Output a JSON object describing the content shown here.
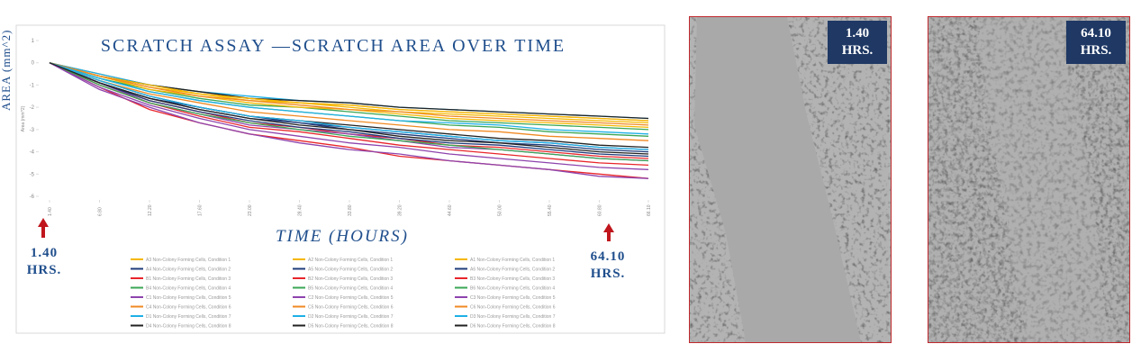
{
  "side_label": "AREA (mm^2)",
  "chart_data": {
    "type": "line",
    "title": "SCRATCH ASSAY —SCRATCH AREA OVER TIME",
    "x_label": "TIME (HOURS)",
    "y_label": "Area (mm^2)",
    "x": [
      1.4,
      6.8,
      12.2,
      17.6,
      23.0,
      28.4,
      33.8,
      39.2,
      44.6,
      50.0,
      55.4,
      60.8,
      66.1
    ],
    "xlim": [
      1.4,
      66.1
    ],
    "xticks": [
      {
        "value": 1.4,
        "label": "1.40"
      },
      {
        "value": 6.8,
        "label": "6.80"
      },
      {
        "value": 12.2,
        "label": "12.20"
      },
      {
        "value": 17.6,
        "label": "17.60"
      },
      {
        "value": 23.0,
        "label": "23.00"
      },
      {
        "value": 28.4,
        "label": "28.40"
      },
      {
        "value": 33.8,
        "label": "33.80"
      },
      {
        "value": 39.2,
        "label": "39.20"
      },
      {
        "value": 44.6,
        "label": "44.60"
      },
      {
        "value": 50.0,
        "label": "50.00"
      },
      {
        "value": 55.4,
        "label": "55.40"
      },
      {
        "value": 60.8,
        "label": "60.80"
      },
      {
        "value": 66.1,
        "label": "66.10"
      }
    ],
    "ylim": [
      -6,
      1
    ],
    "yticks": [
      1,
      0,
      -1,
      -2,
      -3,
      -4,
      -5,
      -6
    ],
    "grid": false,
    "annotations": [
      "1.40 HRS.",
      "64.10 HRS."
    ],
    "series": [
      {
        "name": "A3 Non-Colony Forming Cells, Condition 1",
        "color": "#f5b800",
        "values": [
          0,
          -0.6,
          -1.1,
          -1.4,
          -1.7,
          -1.8,
          -2.0,
          -2.2,
          -2.3,
          -2.4,
          -2.5,
          -2.6,
          -2.7
        ]
      },
      {
        "name": "A4 Non-Colony Forming Cells, Condition 2",
        "color": "#1f3b7a",
        "values": [
          0,
          -0.9,
          -1.6,
          -2.0,
          -2.4,
          -2.7,
          -2.9,
          -3.1,
          -3.3,
          -3.5,
          -3.6,
          -3.8,
          -3.9
        ]
      },
      {
        "name": "B1 Non-Colony Forming Cells, Condition 3",
        "color": "#e8262b",
        "values": [
          0,
          -1.1,
          -2.1,
          -2.7,
          -3.2,
          -3.5,
          -3.8,
          -4.2,
          -4.4,
          -4.6,
          -4.8,
          -5.0,
          -5.2
        ]
      },
      {
        "name": "B4 Non-Colony Forming Cells, Condition 4",
        "color": "#3aa655",
        "values": [
          0,
          -0.7,
          -1.2,
          -1.6,
          -1.9,
          -2.0,
          -2.2,
          -2.4,
          -2.6,
          -2.7,
          -2.8,
          -2.9,
          -3.0
        ]
      },
      {
        "name": "C1 Non-Colony Forming Cells, Condition 5",
        "color": "#8e44ad",
        "values": [
          0,
          -1.1,
          -1.9,
          -2.5,
          -3.0,
          -3.3,
          -3.6,
          -3.8,
          -4.1,
          -4.3,
          -4.5,
          -4.7,
          -4.8
        ]
      },
      {
        "name": "C4 Non-Colony Forming Cells, Condition 6",
        "color": "#f08a24",
        "values": [
          0,
          -0.5,
          -1.0,
          -1.3,
          -1.6,
          -1.8,
          -1.9,
          -2.1,
          -2.2,
          -2.3,
          -2.4,
          -2.5,
          -2.6
        ]
      },
      {
        "name": "D1 Non-Colony Forming Cells, Condition 7",
        "color": "#1fb0e6",
        "values": [
          0,
          -0.5,
          -1.0,
          -1.3,
          -1.5,
          -1.7,
          -1.8,
          -2.0,
          -2.1,
          -2.2,
          -2.3,
          -2.4,
          -2.5
        ]
      },
      {
        "name": "D4 Non-Colony Forming Cells, Condition 8",
        "color": "#222222",
        "values": [
          0,
          -0.8,
          -1.5,
          -2.0,
          -2.4,
          -2.6,
          -2.8,
          -3.0,
          -3.2,
          -3.4,
          -3.5,
          -3.7,
          -3.8
        ]
      },
      {
        "name": "A2 Non-Colony Forming Cells, Condition 1",
        "color": "#f5b800",
        "values": [
          0,
          -0.6,
          -1.2,
          -1.5,
          -1.8,
          -2.0,
          -2.1,
          -2.3,
          -2.5,
          -2.6,
          -2.7,
          -2.8,
          -2.9
        ]
      },
      {
        "name": "A5 Non-Colony Forming Cells, Condition 2",
        "color": "#1f3b7a",
        "values": [
          0,
          -0.9,
          -1.6,
          -2.1,
          -2.5,
          -2.7,
          -3.0,
          -3.2,
          -3.4,
          -3.6,
          -3.7,
          -3.9,
          -4.0
        ]
      },
      {
        "name": "B2 Non-Colony Forming Cells, Condition 3",
        "color": "#e8262b",
        "values": [
          0,
          -0.9,
          -1.7,
          -2.2,
          -2.7,
          -2.9,
          -3.2,
          -3.4,
          -3.7,
          -3.8,
          -4.0,
          -4.2,
          -4.3
        ]
      },
      {
        "name": "B5 Non-Colony Forming Cells, Condition 4",
        "color": "#3aa655",
        "values": [
          0,
          -0.7,
          -1.3,
          -1.7,
          -2.0,
          -2.2,
          -2.4,
          -2.6,
          -2.8,
          -2.9,
          -3.1,
          -3.2,
          -3.3
        ]
      },
      {
        "name": "C2 Non-Colony Forming Cells, Condition 5",
        "color": "#8e44ad",
        "values": [
          0,
          -0.9,
          -1.8,
          -2.3,
          -2.8,
          -3.0,
          -3.2,
          -3.5,
          -3.8,
          -3.9,
          -4.1,
          -4.3,
          -4.4
        ]
      },
      {
        "name": "C5 Non-Colony Forming Cells, Condition 6",
        "color": "#f08a24",
        "values": [
          0,
          -0.8,
          -1.4,
          -1.8,
          -2.2,
          -2.4,
          -2.6,
          -2.8,
          -3.0,
          -3.1,
          -3.3,
          -3.4,
          -3.5
        ]
      },
      {
        "name": "D2 Non-Colony Forming Cells, Condition 7",
        "color": "#1fb0e6",
        "values": [
          0,
          -0.8,
          -1.5,
          -2.0,
          -2.4,
          -2.6,
          -2.9,
          -3.1,
          -3.3,
          -3.5,
          -3.6,
          -3.8,
          -3.9
        ]
      },
      {
        "name": "D5 Non-Colony Forming Cells, Condition 8",
        "color": "#222222",
        "values": [
          0,
          -0.6,
          -1.0,
          -1.3,
          -1.6,
          -1.7,
          -1.8,
          -2.0,
          -2.1,
          -2.2,
          -2.3,
          -2.4,
          -2.5
        ]
      },
      {
        "name": "A1 Non-Colony Forming Cells, Condition 1",
        "color": "#f5b800",
        "values": [
          0,
          -0.6,
          -1.0,
          -1.4,
          -1.6,
          -1.8,
          -1.9,
          -2.1,
          -2.2,
          -2.3,
          -2.4,
          -2.5,
          -2.6
        ]
      },
      {
        "name": "A6 Non-Colony Forming Cells, Condition 2",
        "color": "#1f3b7a",
        "values": [
          0,
          -0.9,
          -1.7,
          -2.2,
          -2.6,
          -2.9,
          -3.1,
          -3.4,
          -3.6,
          -3.7,
          -3.9,
          -4.1,
          -4.2
        ]
      },
      {
        "name": "B3 Non-Colony Forming Cells, Condition 3",
        "color": "#e8262b",
        "values": [
          0,
          -1.0,
          -1.8,
          -2.4,
          -2.9,
          -3.1,
          -3.4,
          -3.7,
          -3.9,
          -4.1,
          -4.3,
          -4.5,
          -4.6
        ]
      },
      {
        "name": "B6 Non-Colony Forming Cells, Condition 4",
        "color": "#3aa655",
        "values": [
          0,
          -1.0,
          -1.8,
          -2.3,
          -2.7,
          -3.0,
          -3.3,
          -3.5,
          -3.7,
          -3.9,
          -4.1,
          -4.3,
          -4.4
        ]
      },
      {
        "name": "C3 Non-Colony Forming Cells, Condition 5",
        "color": "#8e44ad",
        "values": [
          0,
          -1.2,
          -2.0,
          -2.7,
          -3.2,
          -3.6,
          -3.9,
          -4.1,
          -4.4,
          -4.6,
          -4.8,
          -5.1,
          -5.2
        ]
      },
      {
        "name": "C6 Non-Colony Forming Cells, Condition 6",
        "color": "#f08a24",
        "values": [
          0,
          -0.6,
          -1.1,
          -1.5,
          -1.7,
          -1.9,
          -2.1,
          -2.2,
          -2.4,
          -2.5,
          -2.6,
          -2.7,
          -2.8
        ]
      },
      {
        "name": "D3 Non-Colony Forming Cells, Condition 7",
        "color": "#1fb0e6",
        "values": [
          0,
          -0.7,
          -1.3,
          -1.7,
          -2.0,
          -2.2,
          -2.4,
          -2.6,
          -2.7,
          -2.8,
          -3.0,
          -3.1,
          -3.2
        ]
      },
      {
        "name": "D6 Non-Colony Forming Cells, Condition 8",
        "color": "#222222",
        "values": [
          0,
          -0.9,
          -1.6,
          -2.1,
          -2.5,
          -2.8,
          -3.0,
          -3.3,
          -3.5,
          -3.6,
          -3.8,
          -4.0,
          -4.1
        ]
      }
    ]
  },
  "images": [
    {
      "label": "1.40 HRS."
    },
    {
      "label": "64.10 HRS."
    }
  ]
}
